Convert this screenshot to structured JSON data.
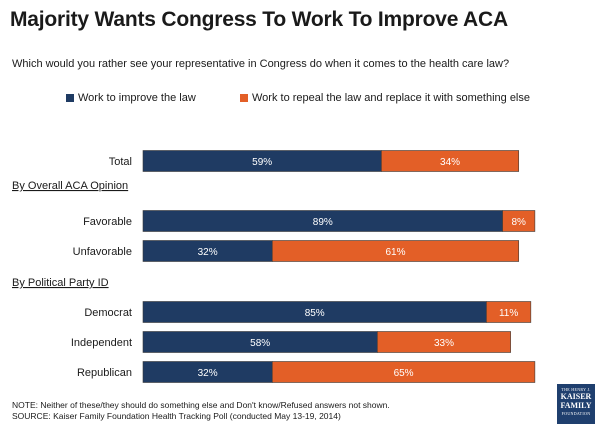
{
  "chart_data": {
    "type": "bar",
    "orientation": "horizontal",
    "stacked": true,
    "title": "Majority Wants Congress To Work To Improve ACA",
    "subtitle": "Which would you rather see your representative in Congress do when it comes to the health care law?",
    "xlim": [
      0,
      100
    ],
    "legend_position": "top",
    "series": [
      {
        "name": "Work to improve the law",
        "color": "#1f3b63"
      },
      {
        "name": "Work to repeal the law and replace it with something else",
        "color": "#e35f27"
      }
    ],
    "rows": [
      {
        "label": "Total",
        "values": [
          59,
          34
        ],
        "value_labels": [
          "59%",
          "34%"
        ]
      },
      {
        "header": "By Overall ACA Opinion"
      },
      {
        "label": "Favorable",
        "values": [
          89,
          8
        ],
        "value_labels": [
          "89%",
          "8%"
        ]
      },
      {
        "label": "Unfavorable",
        "values": [
          32,
          61
        ],
        "value_labels": [
          "32%",
          "61%"
        ]
      },
      {
        "header": "By Political Party ID"
      },
      {
        "label": "Democrat",
        "values": [
          85,
          11
        ],
        "value_labels": [
          "85%",
          "11%"
        ]
      },
      {
        "label": "Independent",
        "values": [
          58,
          33
        ],
        "value_labels": [
          "58%",
          "33%"
        ]
      },
      {
        "label": "Republican",
        "values": [
          32,
          65
        ],
        "value_labels": [
          "32%",
          "65%"
        ]
      }
    ]
  },
  "footnote": {
    "note": "NOTE: Neither of these/they should do something else and Don't know/Refused answers not shown.",
    "source": "SOURCE: Kaiser Family Foundation Health Tracking Poll (conducted May 13-19, 2014)"
  },
  "logo": {
    "line1": "THE HENRY J.",
    "line2": "KAISER",
    "line3": "FAMILY",
    "line4": "FOUNDATION"
  }
}
